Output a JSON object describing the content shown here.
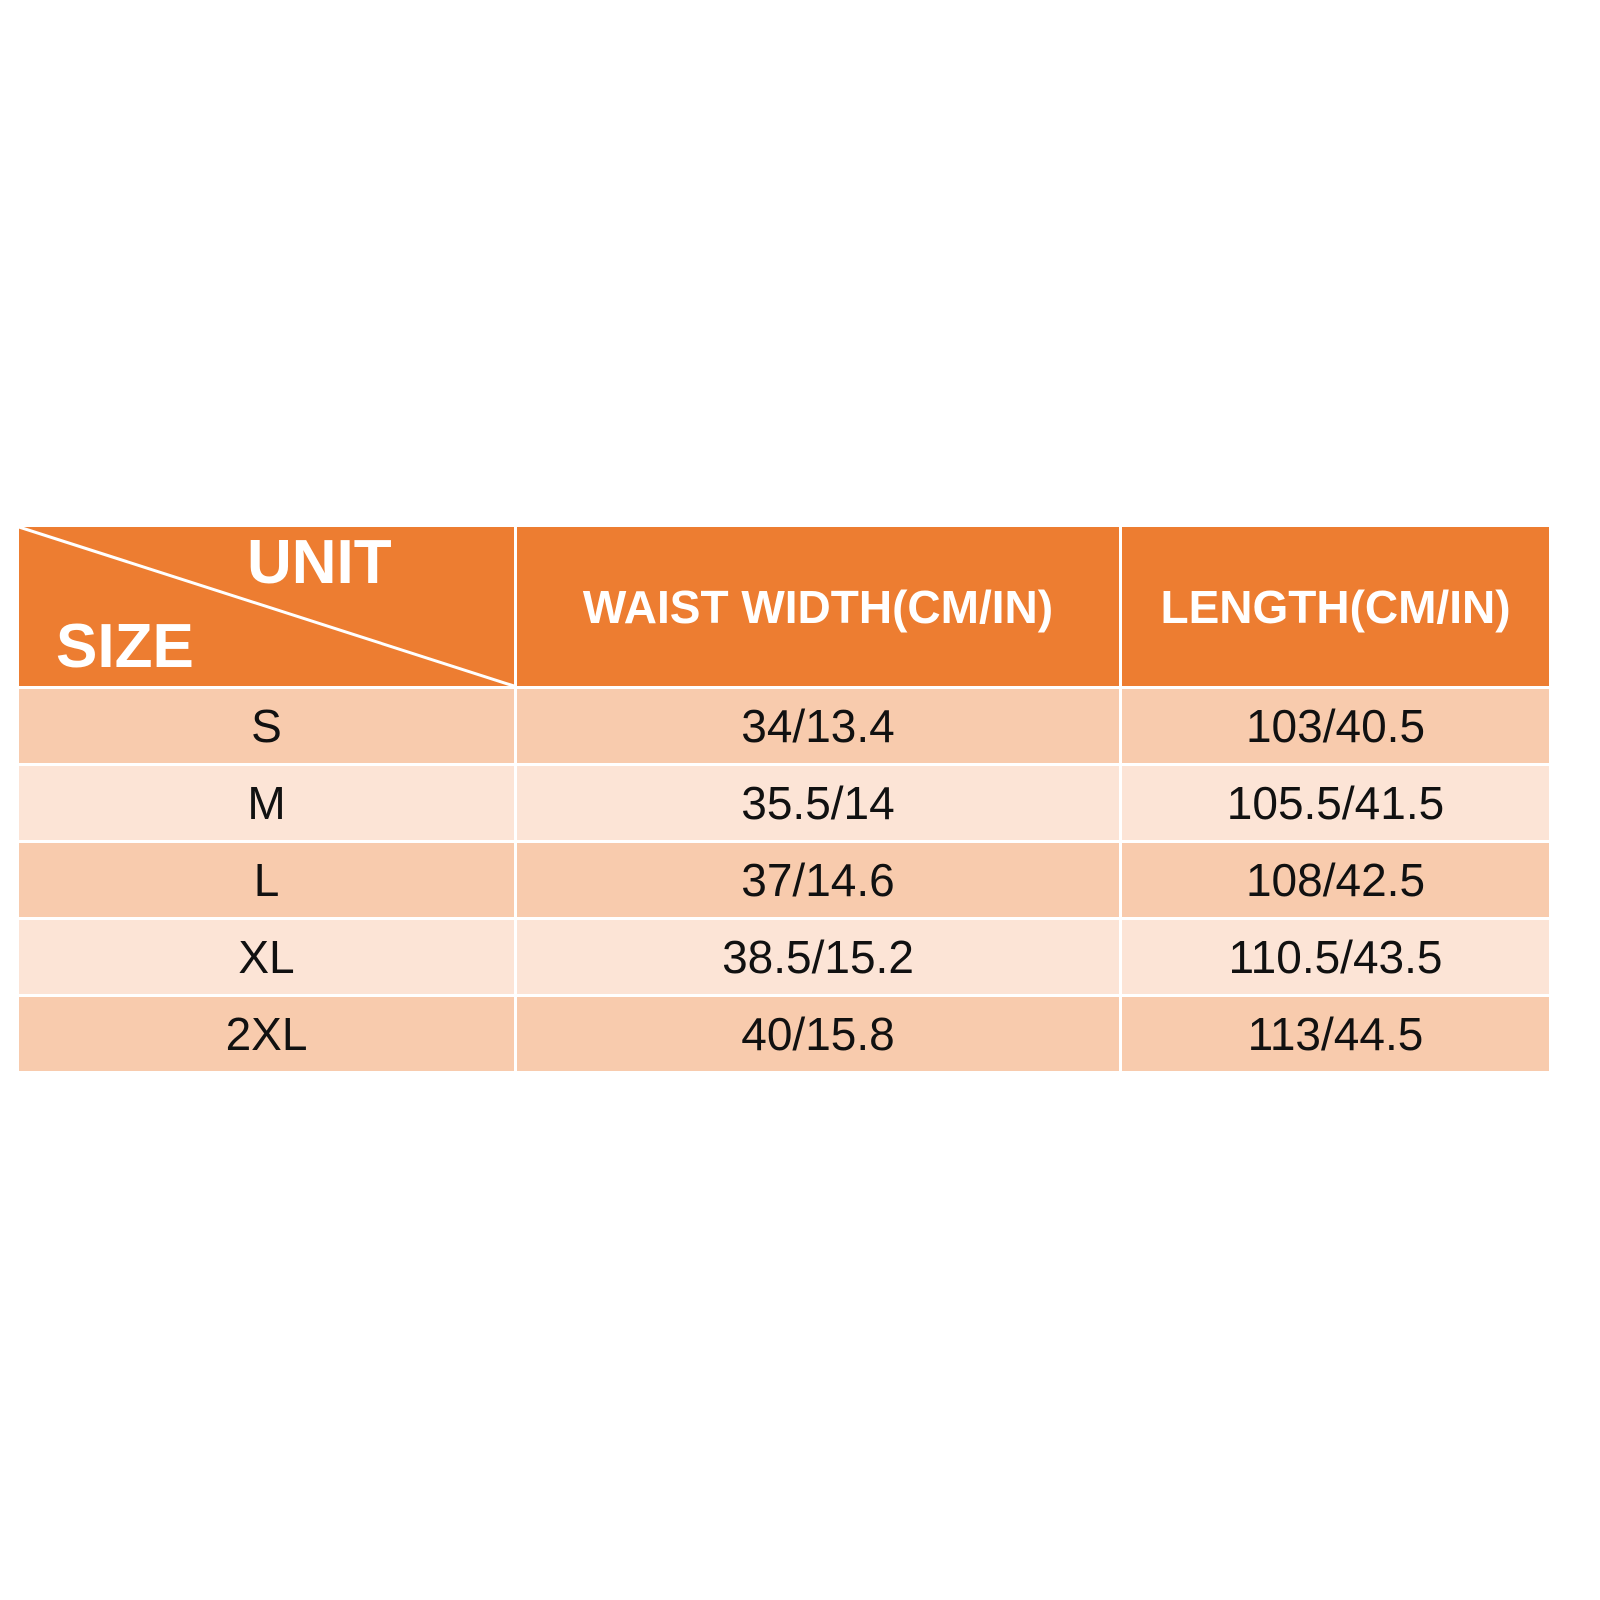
{
  "colors": {
    "header": "#ED7D31",
    "row_odd": "#F8CBAD",
    "row_even": "#FCE4D6"
  },
  "header": {
    "unit": "UNIT",
    "size": "SIZE",
    "waist": "WAIST WIDTH(CM/IN)",
    "length": "LENGTH(CM/IN)"
  },
  "rows": [
    {
      "size": "S",
      "waist": "34/13.4",
      "length": "103/40.5"
    },
    {
      "size": "M",
      "waist": "35.5/14",
      "length": "105.5/41.5"
    },
    {
      "size": "L",
      "waist": "37/14.6",
      "length": "108/42.5"
    },
    {
      "size": "XL",
      "waist": "38.5/15.2",
      "length": "110.5/43.5"
    },
    {
      "size": "2XL",
      "waist": "40/15.8",
      "length": "113/44.5"
    }
  ]
}
